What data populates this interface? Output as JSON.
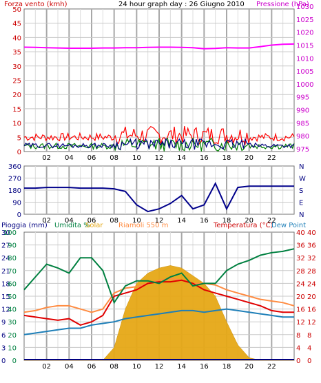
{
  "colors": {
    "background": "#ffffff",
    "plot_bg": "#ffffff",
    "grid_h": "#c8c8c8",
    "grid_v": "#a8a8a8",
    "frame": "#707070",
    "wind": "#ff0000",
    "wind_dark": "#000080",
    "wind_green": "#008000",
    "pressure": "#ff00ff",
    "direction": "#00008b",
    "rain": "#000080",
    "humidity": "#008040",
    "solar": "#e6a817",
    "riamoli": "#ff8c42",
    "temperature": "#e00000",
    "dewpoint": "#1e7fb8"
  },
  "chart_data": [
    {
      "id": "wind-pressure",
      "type": "line",
      "title": "24 hour graph day : 26 Giugno 2010",
      "left_axis_label": "Forza vento (kmh)",
      "right_axis_label": "Pressione (hPa)",
      "left_ticks": [
        "0",
        "5",
        "10",
        "15",
        "20",
        "25",
        "30",
        "35",
        "40",
        "45",
        "50"
      ],
      "left_bottom_ticks": [
        "0",
        "5",
        "10",
        "15"
      ],
      "right_ticks": [
        "975",
        "980",
        "985",
        "990",
        "995",
        "1000",
        "1005",
        "1010",
        "1015",
        "1020",
        "1025",
        "1030"
      ],
      "x_ticks": [
        "02",
        "04",
        "06",
        "08",
        "10",
        "12",
        "14",
        "16",
        "18",
        "20",
        "22"
      ],
      "pressure_hpa": [
        1014.2,
        1014.1,
        1014.0,
        1013.9,
        1013.8,
        1013.8,
        1013.8,
        1013.9,
        1013.9,
        1014.0,
        1014.0,
        1014.1,
        1014.2,
        1014.2,
        1014.1,
        1014.0,
        1013.6,
        1013.7,
        1014.0,
        1013.9,
        1013.9,
        1014.4,
        1015.0,
        1015.3,
        1015.4
      ]
    },
    {
      "id": "wind-direction",
      "type": "line",
      "left_ticks": [
        "0",
        "90",
        "180",
        "270",
        "360"
      ],
      "right_ticks": [
        "N",
        "E",
        "S",
        "W",
        "N"
      ],
      "direction_deg": [
        195,
        195,
        200,
        200,
        200,
        195,
        195,
        195,
        190,
        170,
        70,
        20,
        40,
        80,
        140,
        40,
        70,
        230,
        40,
        200,
        210,
        210,
        210,
        210,
        210
      ]
    },
    {
      "id": "rain-humidity-solar-temp",
      "type": "line",
      "labels": {
        "rain": "Pioggia (mm)",
        "humidity": "Umidita %",
        "solar": "Solar",
        "riamoli": "Riamoli 550 m",
        "temperature": "Temperatura (°C)",
        "dewpoint": "Dew Point"
      },
      "rain_ticks": [
        "0",
        "3",
        "6",
        "9",
        "12",
        "15",
        "18",
        "21",
        "24",
        "27",
        "30"
      ],
      "humidity_ticks": [
        "0",
        "10",
        "20",
        "30",
        "40",
        "50",
        "60",
        "70",
        "80",
        "90",
        "100"
      ],
      "temp_ticks_left": [
        "0",
        "4",
        "8",
        "12",
        "16",
        "20",
        "24",
        "28",
        "32",
        "36",
        "40"
      ],
      "temp_ticks_right": [
        "0",
        "4",
        "8",
        "12",
        "16",
        "20",
        "24",
        "28",
        "32",
        "36",
        "40"
      ],
      "x_ticks": [
        "02",
        "04",
        "06",
        "08",
        "10",
        "12",
        "14",
        "16",
        "18",
        "20",
        "22"
      ],
      "humidity_pct": [
        55,
        65,
        75,
        72,
        68,
        80,
        80,
        70,
        45,
        58,
        62,
        62,
        60,
        65,
        68,
        58,
        60,
        60,
        70,
        75,
        78,
        82,
        84,
        85,
        87
      ],
      "temperature_c": [
        14,
        13.5,
        13,
        12.5,
        13,
        11,
        12,
        14,
        20,
        21,
        22,
        24,
        24.5,
        24.5,
        25,
        24,
        22,
        21,
        20,
        19,
        18,
        17,
        15.5,
        15,
        15
      ],
      "riamoli_c": [
        15,
        15.5,
        16.5,
        17,
        17,
        16,
        15,
        16,
        21,
        22.5,
        23,
        24,
        25,
        25.5,
        25,
        24,
        24,
        23.5,
        22,
        21,
        20,
        19,
        18.5,
        18,
        17
      ],
      "dewpoint_c": [
        8,
        8.5,
        9,
        9.5,
        10,
        10,
        11,
        11.5,
        12,
        13,
        13.5,
        14,
        14.5,
        15,
        15.5,
        15.5,
        15,
        15.5,
        16,
        15.5,
        15,
        14.5,
        14,
        13.5,
        13.5
      ],
      "solar_pct": [
        0,
        0,
        0,
        0,
        0,
        0,
        0,
        0,
        10,
        40,
        60,
        68,
        72,
        74,
        72,
        66,
        60,
        50,
        30,
        12,
        2,
        0,
        0,
        0,
        0
      ]
    }
  ]
}
